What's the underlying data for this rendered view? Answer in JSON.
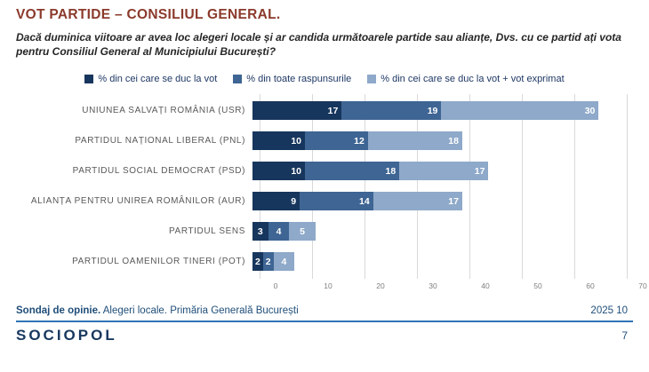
{
  "title": "VOT PARTIDE – CONSILIUL GENERAL.",
  "subtitle": "Dacă duminica viitoare ar avea loc alegeri locale și ar candida următoarele partide sau alianțe, Dvs. cu ce partid ați vota pentru Consiliul General al Municipiului București?",
  "chart_data": {
    "type": "bar",
    "orientation": "horizontal",
    "stacked": true,
    "categories": [
      "UNIUNEA SALVAȚI ROMÂNIA (USR)",
      "PARTIDUL NAȚIONAL LIBERAL (PNL)",
      "PARTIDUL SOCIAL DEMOCRAT (PSD)",
      "ALIANȚA PENTRU UNIREA ROMÂNILOR (AUR)",
      "PARTIDUL SENS",
      "PARTIDUL OAMENILOR TINERI (POT)"
    ],
    "series": [
      {
        "name": "% din cei care se duc la vot",
        "color": "#17365D",
        "values": [
          17,
          10,
          10,
          9,
          3,
          2
        ]
      },
      {
        "name": "% din toate raspunsurile",
        "color": "#3E6593",
        "values": [
          19,
          12,
          18,
          14,
          4,
          2
        ]
      },
      {
        "name": "% din cei care se duc la vot + vot exprimat",
        "color": "#8EA9C9",
        "values": [
          30,
          18,
          17,
          17,
          5,
          4
        ]
      }
    ],
    "xlabel": "",
    "ylabel": "",
    "xlim": [
      0,
      70
    ],
    "x_ticks": [
      0,
      10,
      20,
      30,
      40,
      50,
      60,
      70
    ],
    "grid": "vertical",
    "legend_position": "top",
    "value_labels": "inside-end, white bold"
  },
  "footer": {
    "left_bold": "Sondaj de opinie.",
    "left_rest": " Alegeri locale. Primăria Generală București",
    "right": "2025 10",
    "logo": "SOCIOPOL",
    "page_number": "7"
  },
  "colors": {
    "title": "#8B3A2B",
    "series_dark": "#17365D",
    "series_medium": "#3E6593",
    "series_light": "#8EA9C9",
    "gridline": "#D9D9D9",
    "category_label": "#595959",
    "axis_label": "#7F7F7F",
    "legend_text": "#1F3864",
    "footer_text": "#1F4E79",
    "footer_line": "#2E75B6",
    "logo_text": "#17375E"
  }
}
